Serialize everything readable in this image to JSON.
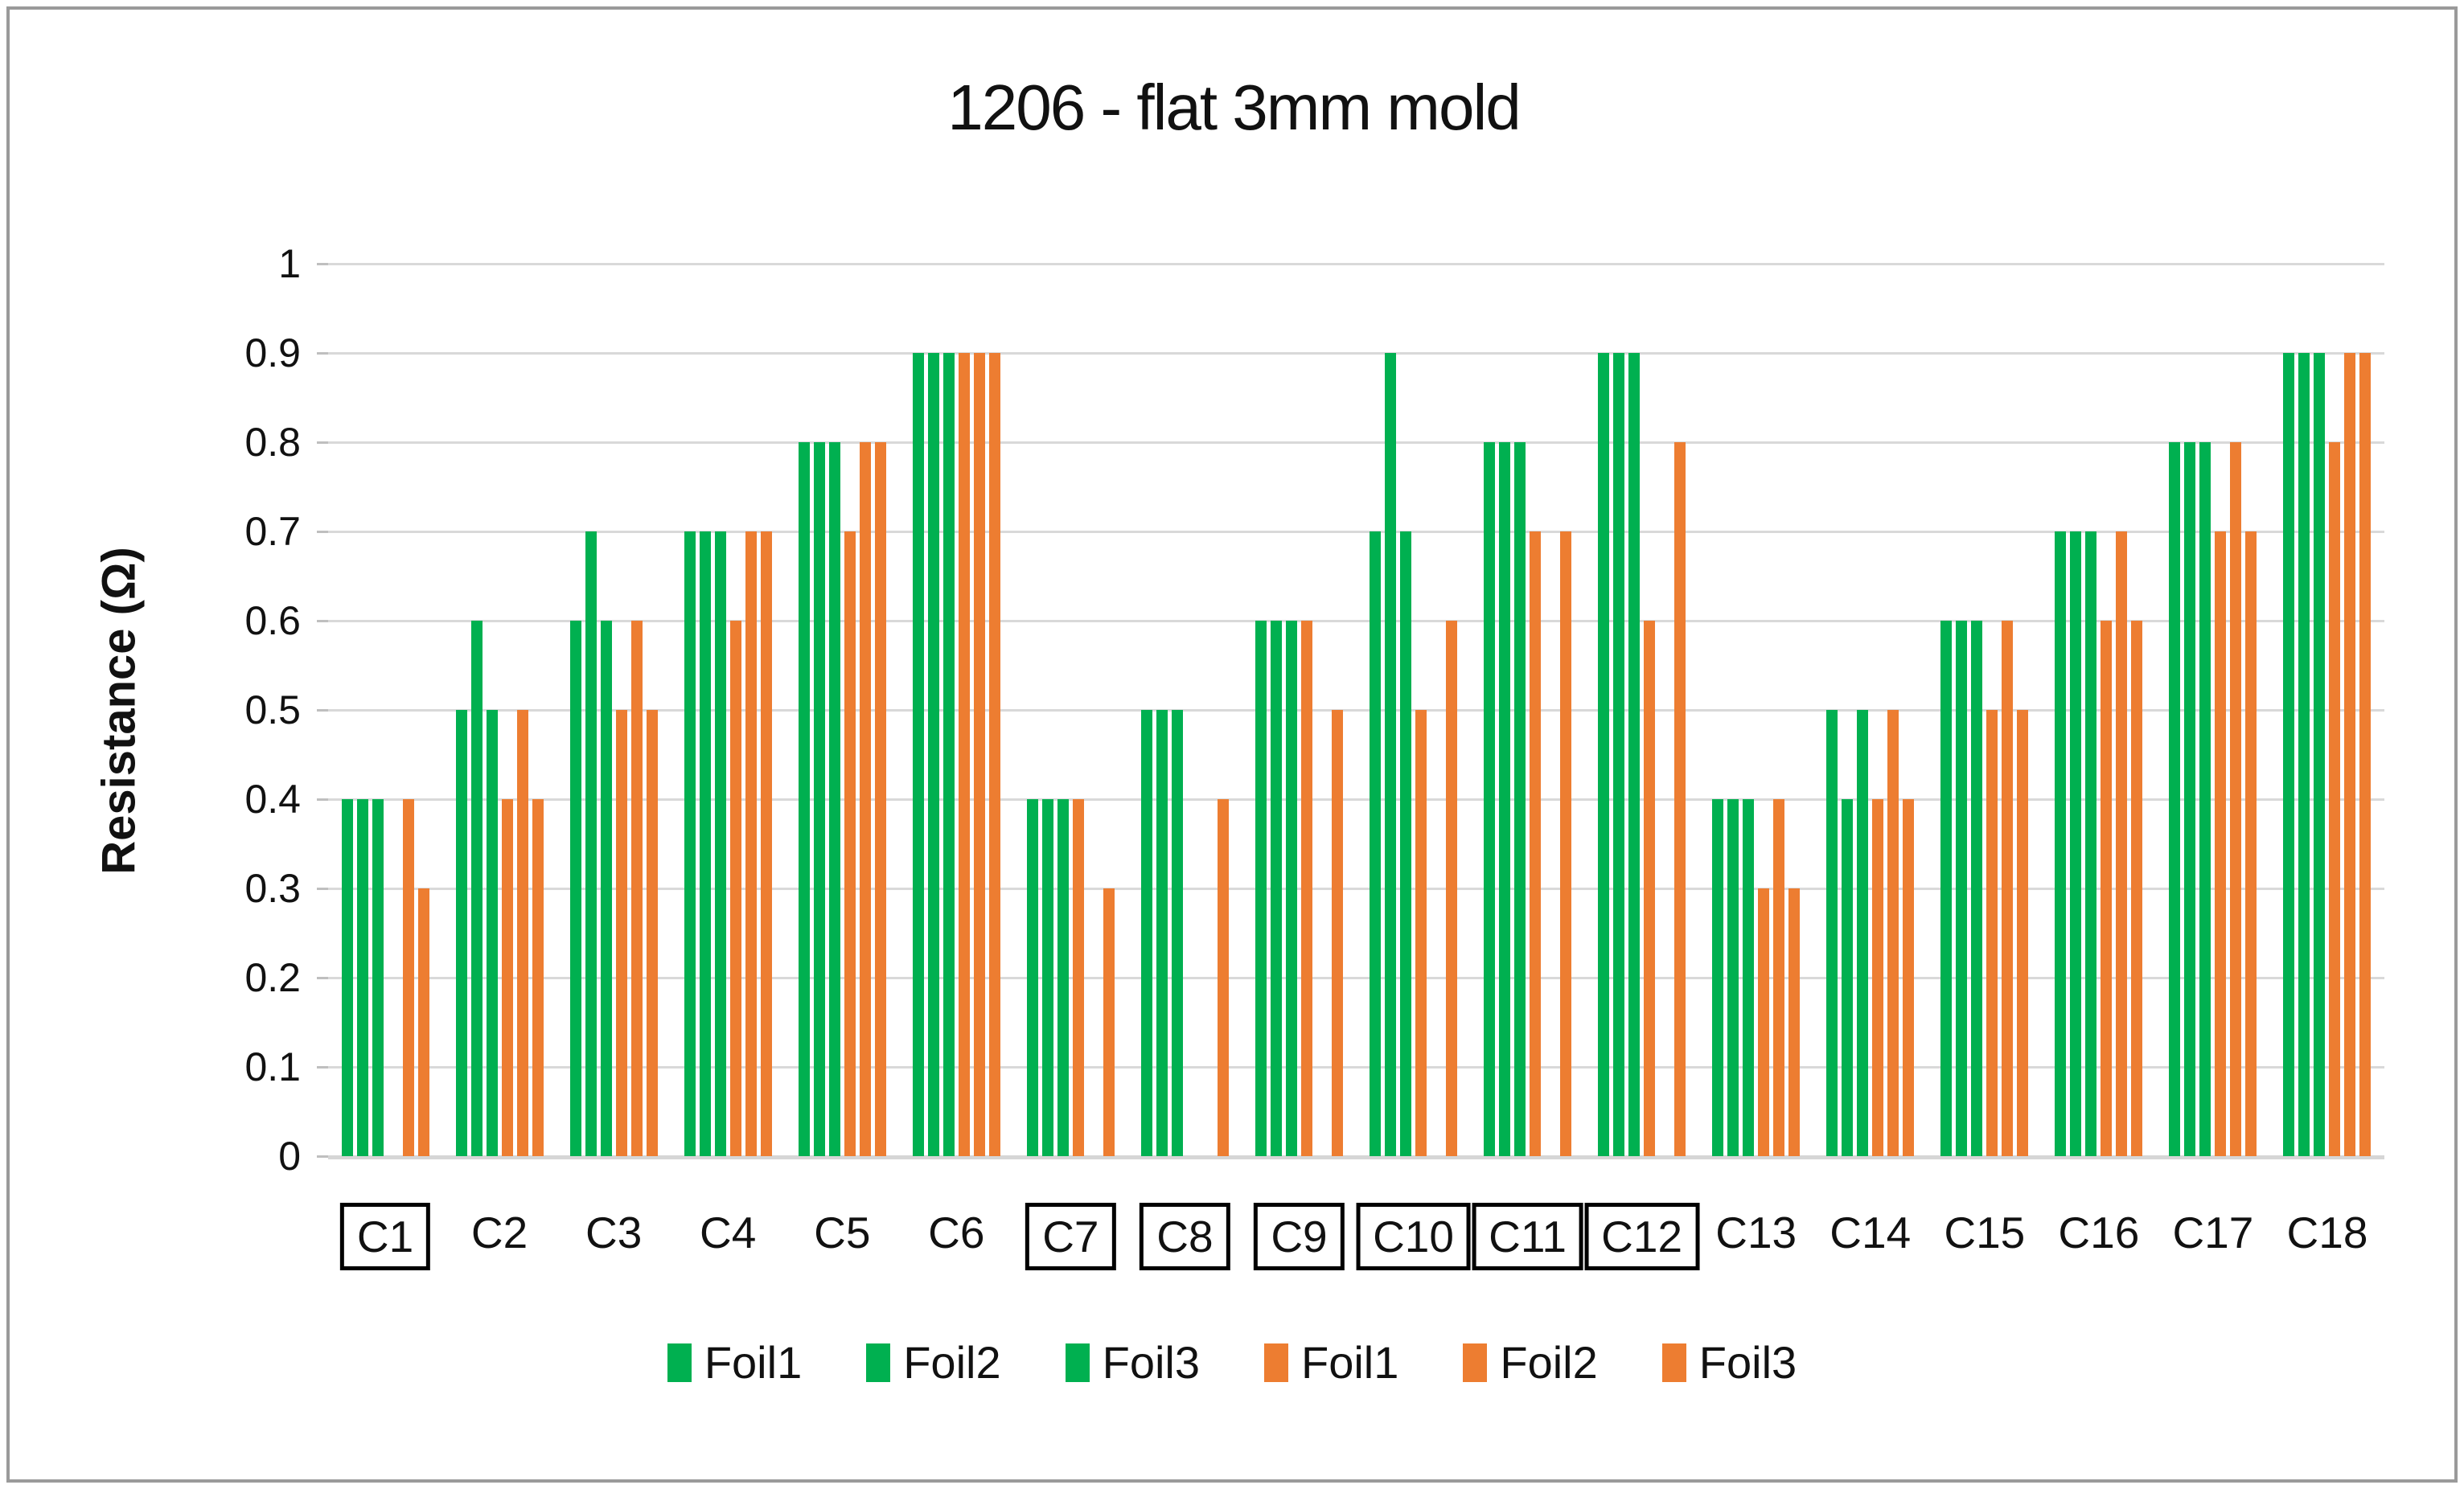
{
  "chart_data": {
    "type": "bar",
    "title": "1206 - flat 3mm mold",
    "xlabel": "",
    "ylabel": "Resistance (Ω)",
    "ylim": [
      0,
      1
    ],
    "ytick_labels": [
      "0",
      "0.1",
      "0.2",
      "0.3",
      "0.4",
      "0.5",
      "0.6",
      "0.7",
      "0.8",
      "0.9",
      "1"
    ],
    "grid": true,
    "legend_position": "bottom",
    "categories": [
      "C1",
      "C2",
      "C3",
      "C4",
      "C5",
      "C6",
      "C7",
      "C8",
      "C9",
      "C10",
      "C11",
      "C12",
      "C13",
      "C14",
      "C15",
      "C16",
      "C17",
      "C18"
    ],
    "boxed_categories": [
      "C1",
      "C7",
      "C8",
      "C9",
      "C10",
      "C11",
      "C12"
    ],
    "series": [
      {
        "name": "Foil1",
        "color": "#00B050",
        "values": [
          0.4,
          0.5,
          0.6,
          0.7,
          0.8,
          0.9,
          0.4,
          0.5,
          0.6,
          0.7,
          0.8,
          0.9,
          0.4,
          0.5,
          0.6,
          0.7,
          0.8,
          0.9
        ]
      },
      {
        "name": "Foil2",
        "color": "#00B050",
        "values": [
          0.4,
          0.6,
          0.7,
          0.7,
          0.8,
          0.9,
          0.4,
          0.5,
          0.6,
          0.9,
          0.8,
          0.9,
          0.4,
          0.4,
          0.6,
          0.7,
          0.8,
          0.9
        ]
      },
      {
        "name": "Foil3",
        "color": "#00B050",
        "values": [
          0.4,
          0.5,
          0.6,
          0.7,
          0.8,
          0.9,
          0.4,
          0.5,
          0.6,
          0.7,
          0.8,
          0.9,
          0.4,
          0.5,
          0.6,
          0.7,
          0.8,
          0.9
        ]
      },
      {
        "name": "Foil1",
        "color": "#ED7D31",
        "values": [
          0,
          0.4,
          0.5,
          0.6,
          0.7,
          0.9,
          0.4,
          0,
          0.6,
          0.5,
          0.7,
          0.6,
          0.3,
          0.4,
          0.5,
          0.6,
          0.7,
          0.8
        ]
      },
      {
        "name": "Foil2",
        "color": "#ED7D31",
        "values": [
          0.4,
          0.5,
          0.6,
          0.7,
          0.8,
          0.9,
          0,
          0,
          0,
          0,
          0,
          0,
          0.4,
          0.5,
          0.6,
          0.7,
          0.8,
          0.9
        ]
      },
      {
        "name": "Foil3",
        "color": "#ED7D31",
        "values": [
          0.3,
          0.4,
          0.5,
          0.7,
          0.8,
          0.9,
          0.3,
          0.4,
          0.5,
          0.6,
          0.7,
          0.8,
          0.3,
          0.4,
          0.5,
          0.6,
          0.7,
          0.9
        ]
      }
    ],
    "legend": [
      {
        "label": "Foil1",
        "color": "#00B050"
      },
      {
        "label": "Foil2",
        "color": "#00B050"
      },
      {
        "label": "Foil3",
        "color": "#00B050"
      },
      {
        "label": "Foil1",
        "color": "#ED7D31"
      },
      {
        "label": "Foil2",
        "color": "#ED7D31"
      },
      {
        "label": "Foil3",
        "color": "#ED7D31"
      }
    ]
  },
  "colors": {
    "green": "#00B050",
    "orange": "#ED7D31",
    "gridline": "#D9D9D9",
    "frame_border": "#9A9A9A",
    "text": "#111111"
  }
}
